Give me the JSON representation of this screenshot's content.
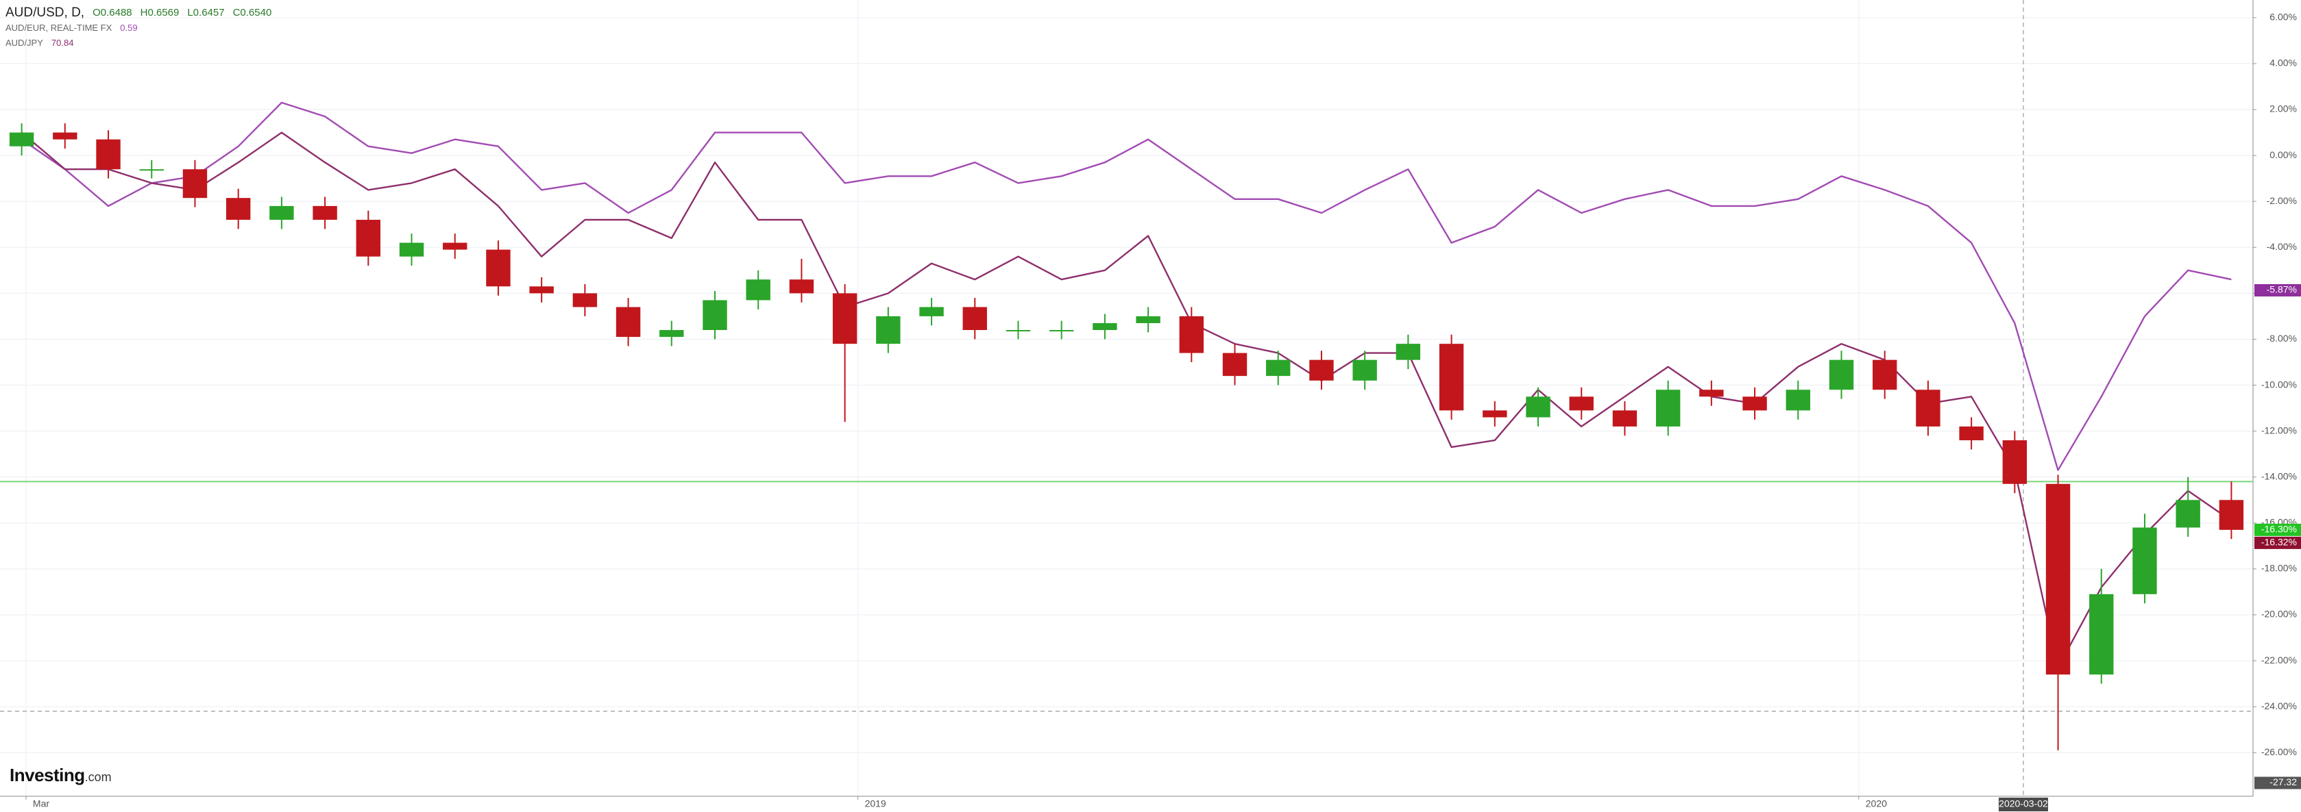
{
  "chart_data": {
    "type": "candlestick",
    "title": "AUD/USD, D,",
    "ohlc_labels": [
      "O0.6488",
      "H0.6569",
      "L0.6457",
      "C0.6540"
    ],
    "up_color": "#2aa52a",
    "down_color": "#c1171c",
    "open": [
      0.4,
      1.0,
      0.7,
      -0.6,
      -0.6,
      -1.85,
      -2.8,
      -2.2,
      -2.8,
      -4.4,
      -3.8,
      -4.1,
      -5.7,
      -6.0,
      -6.6,
      -7.9,
      -7.6,
      -6.3,
      -5.4,
      -6.0,
      -8.2,
      -7.0,
      -6.6,
      -7.6,
      -7.6,
      -7.6,
      -7.3,
      -7.0,
      -8.6,
      -9.6,
      -8.9,
      -9.8,
      -8.9,
      -8.2,
      -11.1,
      -11.4,
      -10.5,
      -11.1,
      -11.8,
      -10.2,
      -10.5,
      -11.1,
      -10.2,
      -8.9,
      -10.2,
      -11.8,
      -12.4,
      -14.3,
      -22.6,
      -19.1,
      -16.2,
      -15.0
    ],
    "high": [
      1.4,
      1.4,
      1.1,
      -0.2,
      -0.2,
      -1.45,
      -1.8,
      -1.8,
      -2.4,
      -3.4,
      -3.4,
      -3.7,
      -5.3,
      -5.6,
      -6.2,
      -7.2,
      -5.9,
      -5.0,
      -4.5,
      -5.6,
      -6.6,
      -6.2,
      -6.2,
      -7.2,
      -7.2,
      -6.9,
      -6.6,
      -6.6,
      -8.2,
      -8.5,
      -8.5,
      -8.5,
      -7.8,
      -7.8,
      -10.7,
      -10.1,
      -10.1,
      -10.7,
      -9.8,
      -9.8,
      -10.1,
      -9.8,
      -8.5,
      -8.5,
      -9.8,
      -11.4,
      -12.0,
      -13.9,
      -18.0,
      -15.6,
      -14.0,
      -14.2
    ],
    "low": [
      0.0,
      0.3,
      -1.0,
      -1.0,
      -2.25,
      -3.2,
      -3.2,
      -3.2,
      -4.8,
      -4.8,
      -4.5,
      -6.1,
      -6.4,
      -7.0,
      -8.3,
      -8.3,
      -8.0,
      -6.7,
      -6.4,
      -11.6,
      -8.6,
      -7.4,
      -8.0,
      -8.0,
      -8.0,
      -8.0,
      -7.7,
      -9.0,
      -10.0,
      -10.0,
      -10.2,
      -10.2,
      -9.3,
      -11.5,
      -11.8,
      -11.8,
      -11.5,
      -12.2,
      -12.2,
      -10.9,
      -11.5,
      -11.5,
      -10.6,
      -10.6,
      -12.2,
      -12.8,
      -14.7,
      -25.9,
      -23.0,
      -19.5,
      -16.6,
      -16.7
    ],
    "close": [
      1.0,
      0.7,
      -0.6,
      -0.6,
      -1.85,
      -2.8,
      -2.2,
      -2.8,
      -4.4,
      -3.8,
      -4.1,
      -5.7,
      -6.0,
      -6.6,
      -7.9,
      -7.6,
      -6.3,
      -5.4,
      -6.0,
      -8.2,
      -7.0,
      -6.6,
      -7.6,
      -7.6,
      -7.6,
      -7.3,
      -7.0,
      -8.6,
      -9.6,
      -8.9,
      -9.8,
      -8.9,
      -8.2,
      -11.1,
      -11.4,
      -10.5,
      -11.1,
      -11.8,
      -10.2,
      -10.5,
      -11.1,
      -10.2,
      -8.9,
      -10.2,
      -11.8,
      -12.4,
      -14.3,
      -22.6,
      -19.1,
      -16.2,
      -15.0,
      -16.3
    ],
    "series": [
      {
        "name": "AUD/EUR, REAL-TIME FX",
        "color": "#a24bb3",
        "last_value": 0.59,
        "values": [
          0.7,
          -0.6,
          -2.2,
          -1.2,
          -0.9,
          0.4,
          2.3,
          1.7,
          0.4,
          0.1,
          0.7,
          0.4,
          -1.5,
          -1.2,
          -2.5,
          -1.5,
          1.0,
          1.0,
          1.0,
          -1.2,
          -0.9,
          -0.9,
          -0.3,
          -1.2,
          -0.9,
          -0.3,
          0.7,
          -0.6,
          -1.9,
          -1.9,
          -2.5,
          -1.5,
          -0.6,
          -3.8,
          -3.1,
          -1.5,
          -2.5,
          -1.9,
          -1.5,
          -2.2,
          -2.2,
          -1.9,
          -0.9,
          -1.5,
          -2.2,
          -3.8,
          -7.3,
          -13.7,
          -10.5,
          -7.0,
          -5.0,
          -5.4
        ]
      },
      {
        "name": "AUD/JPY",
        "color": "#8e2f6b",
        "last_value": 70.84,
        "values": [
          1.0,
          -0.6,
          -0.6,
          -1.2,
          -1.5,
          -0.3,
          1.0,
          -0.3,
          -1.5,
          -1.2,
          -0.6,
          -2.2,
          -4.4,
          -2.8,
          -2.8,
          -3.6,
          -0.3,
          -2.8,
          -2.8,
          -6.6,
          -6.0,
          -4.7,
          -5.4,
          -4.4,
          -5.4,
          -5.0,
          -3.5,
          -7.3,
          -8.2,
          -8.6,
          -9.8,
          -8.6,
          -8.6,
          -12.7,
          -12.4,
          -10.2,
          -11.8,
          -10.5,
          -9.2,
          -10.5,
          -10.8,
          -9.2,
          -8.2,
          -8.9,
          -10.8,
          -10.5,
          -13.7,
          -22.3,
          -18.8,
          -16.5,
          -14.6,
          -15.9
        ]
      }
    ],
    "xlim": [
      -0.5,
      51.5
    ],
    "xticks": [
      {
        "value": 0.1,
        "label": "Mar"
      },
      {
        "value": 19.3,
        "label": "2019"
      },
      {
        "value": 42.4,
        "label": "2020"
      }
    ],
    "ylim": [
      -27.9,
      6.77
    ],
    "yticks": [
      {
        "value": 6,
        "label": "6.00%"
      },
      {
        "value": 4,
        "label": "4.00%"
      },
      {
        "value": 2,
        "label": "2.00%"
      },
      {
        "value": 0,
        "label": "0.00%"
      },
      {
        "value": -2,
        "label": "-2.00%"
      },
      {
        "value": -4,
        "label": "-4.00%"
      },
      {
        "value": -6,
        "label": "-6.00%"
      },
      {
        "value": -8,
        "label": "-8.00%"
      },
      {
        "value": -10,
        "label": "-10.00%"
      },
      {
        "value": -12,
        "label": "-12.00%"
      },
      {
        "value": -14,
        "label": "-14.00%"
      },
      {
        "value": -16,
        "label": "-16.00%"
      },
      {
        "value": -18,
        "label": "-18.00%"
      },
      {
        "value": -20,
        "label": "-20.00%"
      },
      {
        "value": -22,
        "label": "-22.00%"
      },
      {
        "value": -24,
        "label": "-24.00%"
      },
      {
        "value": -26,
        "label": "-26.00%"
      }
    ],
    "grid": true,
    "reference_line": {
      "value": -14.2,
      "color": "#7ad67a"
    },
    "crosshair": {
      "x": 46.2,
      "x_label": "2020-03-02",
      "y": -24.2
    },
    "price_labels": [
      {
        "value": -5.87,
        "label": "-5.87%",
        "color": "#8e2f9c"
      },
      {
        "value": -16.3,
        "label": "-16.30%",
        "color": "#22c322"
      },
      {
        "value": -16.32,
        "label": "-16.32%",
        "color": "#8e1030"
      },
      {
        "value": -27.32,
        "label": "-27.32",
        "color": "#555555"
      }
    ],
    "watermark": "Investing",
    "watermark_suffix": ".com"
  }
}
